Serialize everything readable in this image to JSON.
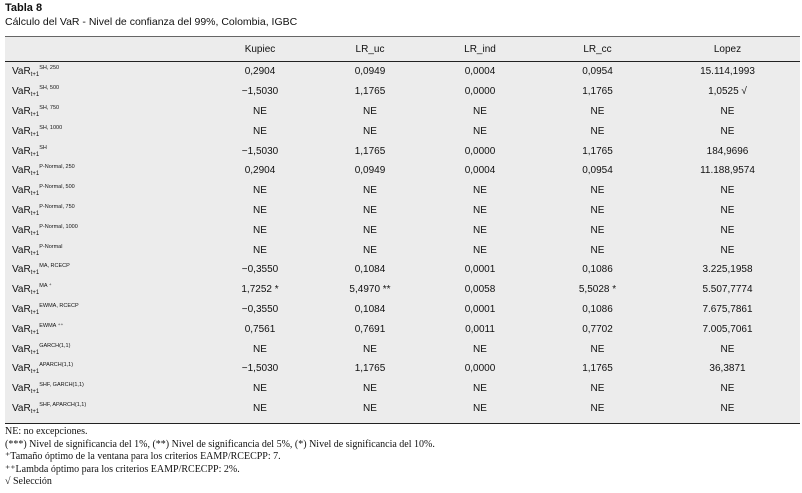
{
  "title": "Tabla 8",
  "subtitle": "Cálculo del VaR - Nivel de confianza del 99%, Colombia, IGBC",
  "columns": [
    "",
    "Kupiec",
    "LR_uc",
    "LR_ind",
    "LR_cc",
    "Lopez"
  ],
  "rows": [
    {
      "base": "VaR",
      "sub": "t+1",
      "sup": "SH, 250",
      "values": [
        "0,2904",
        "0,0949",
        "0,0004",
        "0,0954",
        "15.114,1993"
      ]
    },
    {
      "base": "VaR",
      "sub": "t+1",
      "sup": "SH, 500",
      "values": [
        "−1,5030",
        "1,1765",
        "0,0000",
        "1,1765",
        "1,0525 √"
      ]
    },
    {
      "base": "VaR",
      "sub": "t+1",
      "sup": "SH, 750",
      "values": [
        "NE",
        "NE",
        "NE",
        "NE",
        "NE"
      ]
    },
    {
      "base": "VaR",
      "sub": "t+1",
      "sup": "SH, 1000",
      "values": [
        "NE",
        "NE",
        "NE",
        "NE",
        "NE"
      ]
    },
    {
      "base": "VaR",
      "sub": "t+1",
      "sup": "SH",
      "values": [
        "−1,5030",
        "1,1765",
        "0,0000",
        "1,1765",
        "184,9696"
      ]
    },
    {
      "base": "VaR",
      "sub": "t+1",
      "sup": "P-Normal, 250",
      "values": [
        "0,2904",
        "0,0949",
        "0,0004",
        "0,0954",
        "11.188,9574"
      ]
    },
    {
      "base": "VaR",
      "sub": "t+1",
      "sup": "P-Normal, 500",
      "values": [
        "NE",
        "NE",
        "NE",
        "NE",
        "NE"
      ]
    },
    {
      "base": "VaR",
      "sub": "t+1",
      "sup": "P-Normal, 750",
      "values": [
        "NE",
        "NE",
        "NE",
        "NE",
        "NE"
      ]
    },
    {
      "base": "VaR",
      "sub": "t+1",
      "sup": "P-Normal, 1000",
      "values": [
        "NE",
        "NE",
        "NE",
        "NE",
        "NE"
      ]
    },
    {
      "base": "VaR",
      "sub": "t+1",
      "sup": "P-Normal",
      "values": [
        "NE",
        "NE",
        "NE",
        "NE",
        "NE"
      ]
    },
    {
      "base": "VaR",
      "sub": "t+1",
      "sup": "MA, RCECP",
      "values": [
        "−0,3550",
        "0,1084",
        "0,0001",
        "0,1086",
        "3.225,1958"
      ]
    },
    {
      "base": "VaR",
      "sub": "t+1",
      "sup": "MA ⁺",
      "values": [
        "1,7252 *",
        "5,4970 **",
        "0,0058",
        "5,5028 *",
        "5.507,7774"
      ]
    },
    {
      "base": "VaR",
      "sub": "t+1",
      "sup": "EWMA, RCECP",
      "values": [
        "−0,3550",
        "0,1084",
        "0,0001",
        "0,1086",
        "7.675,7861"
      ]
    },
    {
      "base": "VaR",
      "sub": "t+1",
      "sup": "EWMA ⁺⁺",
      "values": [
        "0,7561",
        "0,7691",
        "0,0011",
        "0,7702",
        "7.005,7061"
      ]
    },
    {
      "base": "VaR",
      "sub": "t+1",
      "sup": "GARCH(1,1)",
      "values": [
        "NE",
        "NE",
        "NE",
        "NE",
        "NE"
      ]
    },
    {
      "base": "VaR",
      "sub": "t+1",
      "sup": "APARCH(1,1)",
      "values": [
        "−1,5030",
        "1,1765",
        "0,0000",
        "1,1765",
        "36,3871"
      ]
    },
    {
      "base": "VaR",
      "sub": "t+1",
      "sup": "SHF, GARCH(1,1)",
      "values": [
        "NE",
        "NE",
        "NE",
        "NE",
        "NE"
      ]
    },
    {
      "base": "VaR",
      "sub": "t+1",
      "sup": "SHF, APARCH(1,1)",
      "values": [
        "NE",
        "NE",
        "NE",
        "NE",
        "NE"
      ]
    }
  ],
  "notes": [
    "NE: no excepciones.",
    "(***) Nivel de significancia del 1%, (**) Nivel de significancia del 5%, (*) Nivel de significancia del 10%.",
    "⁺Tamaño óptimo de la ventana para los criterios EAMP/RCECPP: 7.",
    "⁺⁺Lambda óptimo para los criterios EAMP/RCECPP: 2%.",
    "√ Selección"
  ]
}
